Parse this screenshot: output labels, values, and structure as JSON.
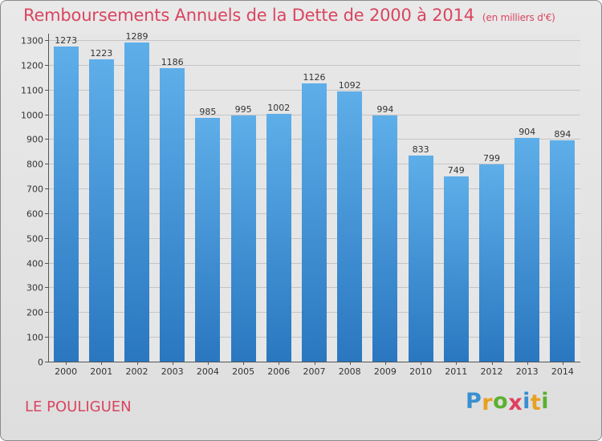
{
  "page": {
    "title": "Remboursements Annuels de la Dette de 2000 à 2014",
    "subtitle": "(en milliers d'€)",
    "commune": "LE POULIGUEN",
    "logo": {
      "letters": [
        "P",
        "r",
        "o",
        "x",
        "i",
        "t",
        "i"
      ],
      "colors": [
        "#3a8fd0",
        "#e8a020",
        "#5cb030",
        "#e04060",
        "#3a8fd0",
        "#e8a020",
        "#5cb030"
      ]
    }
  },
  "colors": {
    "title": "#d94560",
    "bar_light": "#5eaee9",
    "bar_dark": "#2a77c0",
    "grid": "#c4c4c4",
    "background": "#e6e6e6"
  },
  "chart_data": {
    "type": "bar",
    "categories": [
      "2000",
      "2001",
      "2002",
      "2003",
      "2004",
      "2005",
      "2006",
      "2007",
      "2008",
      "2009",
      "2010",
      "2011",
      "2012",
      "2013",
      "2014"
    ],
    "values": [
      1273,
      1223,
      1289,
      1186,
      985,
      995,
      1002,
      1126,
      1092,
      994,
      833,
      749,
      799,
      904,
      894
    ],
    "data_labels": [
      "1273",
      "1223",
      "1289",
      "1186",
      "985",
      "995",
      "1002",
      "1126",
      "1092",
      "994",
      "833",
      "749",
      "799",
      "904",
      "894"
    ],
    "yticks": [
      0,
      100,
      200,
      300,
      400,
      500,
      600,
      700,
      800,
      900,
      1000,
      1100,
      1200,
      1300
    ],
    "ylim": [
      0,
      1300
    ],
    "grid": true,
    "xlabel": "",
    "ylabel": ""
  }
}
